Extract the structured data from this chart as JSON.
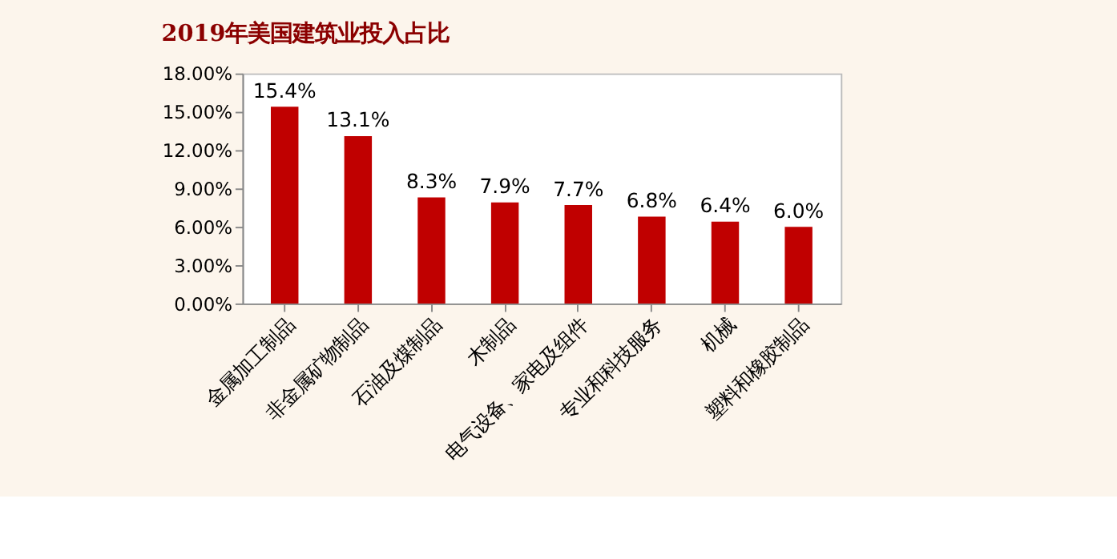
{
  "chart_data": {
    "type": "bar",
    "title": "2019年美国建筑业投入占比",
    "categories": [
      "金属加工制品",
      "非金属矿物制品",
      "石油及煤制品",
      "木制品",
      "电气设备、家电及组件",
      "专业和科技服务",
      "机械",
      "塑料和橡胶制品"
    ],
    "values": [
      15.4,
      13.1,
      8.3,
      7.9,
      7.7,
      6.8,
      6.4,
      6.0
    ],
    "value_labels": [
      "15.4%",
      "13.1%",
      "8.3%",
      "7.9%",
      "7.7%",
      "6.8%",
      "6.4%",
      "6.0%"
    ],
    "color": "#c00000",
    "ylim": [
      0,
      18
    ],
    "yticks": [
      {
        "value": 0,
        "label": "0.00%"
      },
      {
        "value": 3,
        "label": "3.00%"
      },
      {
        "value": 6,
        "label": "6.00%"
      },
      {
        "value": 9,
        "label": "9.00%"
      },
      {
        "value": 12,
        "label": "12.00%"
      },
      {
        "value": 15,
        "label": "15.00%"
      },
      {
        "value": 18,
        "label": "18.00%"
      }
    ],
    "grid": false
  }
}
